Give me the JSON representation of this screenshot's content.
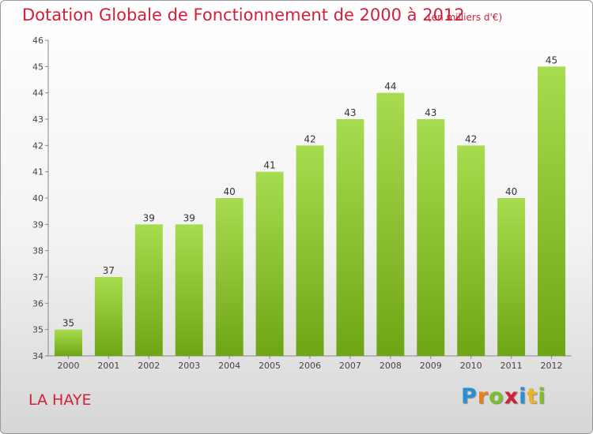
{
  "header": {
    "title": "Dotation Globale de Fonctionnement de 2000 à 2012",
    "unit": "(en milliers d'€)"
  },
  "footer": {
    "commune": "LA HAYE",
    "logo_letters": [
      "P",
      "r",
      "o",
      "x",
      "i",
      "t",
      "i"
    ],
    "logo_colors": [
      "#2b8fd6",
      "#f07d18",
      "#7bbf2c",
      "#d0203a",
      "#2b8fd6",
      "#f0b323",
      "#7bbf2c"
    ]
  },
  "chart_data": {
    "type": "bar",
    "categories": [
      "2000",
      "2001",
      "2002",
      "2003",
      "2004",
      "2005",
      "2006",
      "2007",
      "2008",
      "2009",
      "2010",
      "2011",
      "2012"
    ],
    "values": [
      35,
      37,
      39,
      39,
      40,
      41,
      42,
      43,
      44,
      43,
      42,
      40,
      45
    ],
    "ylim": [
      34,
      46
    ],
    "yticks": [
      34,
      35,
      36,
      37,
      38,
      39,
      40,
      41,
      42,
      43,
      44,
      45,
      46
    ],
    "grid": false,
    "data_labels": true,
    "bar_colors": [
      "#a8dc50",
      "#6ea515"
    ]
  }
}
